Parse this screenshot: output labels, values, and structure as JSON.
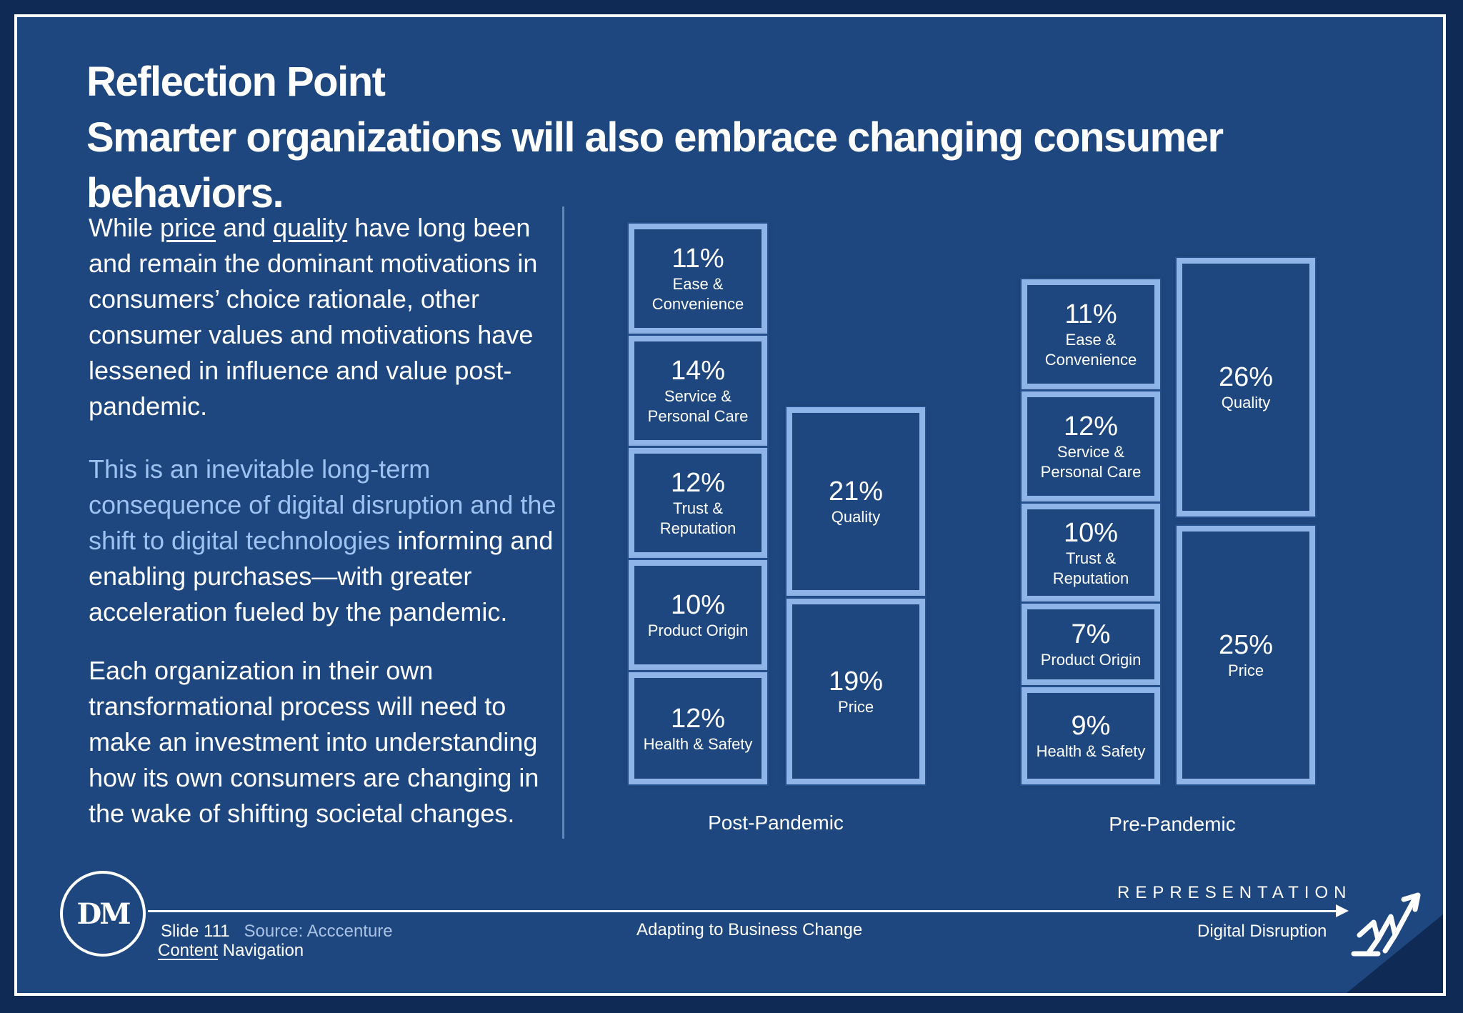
{
  "title": {
    "line1": "Reflection Point",
    "line2": "Smarter organizations will also embrace changing consumer behaviors."
  },
  "paragraphs": {
    "p1": {
      "t1": "While ",
      "price": "price",
      "t2": " and ",
      "quality": "quality",
      "t3": " have long been and remain the dominant motivations in consumers’ choice rationale, other consumer values and motivations have lessened in influence and value post-pandemic."
    },
    "p2": {
      "highlight": "This is an inevitable long-term consequence of digital disruption and the shift to digital technologies",
      "rest": " informing and enabling purchases—with greater acceleration fueled by the pandemic."
    },
    "p3": "Each organization in their own transformational process will need to make an investment into understanding how its own consumers are changing in the wake of shifting societal changes."
  },
  "charts": {
    "post": {
      "label": "Post-Pandemic",
      "left": [
        {
          "pct": "11%",
          "label": "Ease & Convenience"
        },
        {
          "pct": "14%",
          "label": "Service & Personal Care"
        },
        {
          "pct": "12%",
          "label": "Trust & Reputation"
        },
        {
          "pct": "10%",
          "label": "Product Origin"
        },
        {
          "pct": "12%",
          "label": "Health & Safety"
        }
      ],
      "right": [
        {
          "pct": "21%",
          "label": "Quality"
        },
        {
          "pct": "19%",
          "label": "Price"
        }
      ]
    },
    "pre": {
      "label": "Pre-Pandemic",
      "left": [
        {
          "pct": "11%",
          "label": "Ease & Convenience"
        },
        {
          "pct": "12%",
          "label": "Service & Personal Care"
        },
        {
          "pct": "10%",
          "label": "Trust & Reputation"
        },
        {
          "pct": "7%",
          "label": "Product Origin"
        },
        {
          "pct": "9%",
          "label": "Health & Safety"
        }
      ],
      "right": [
        {
          "pct": "26%",
          "label": "Quality"
        },
        {
          "pct": "25%",
          "label": "Price"
        }
      ]
    }
  },
  "footer": {
    "logo": "DM",
    "slide": "Slide 111",
    "source": "Source: Acccenture",
    "content_link": "Content",
    "navigation": " Navigation",
    "center": "Adapting to Business Change",
    "representation": "REPRESENTATION",
    "right": "Digital Disruption",
    "corner_icon": "digital-disruption-logo-icon"
  },
  "colors": {
    "background": "#1f477f",
    "box_border": "#8fb5e8",
    "accent_text": "#9ec3f2"
  }
}
